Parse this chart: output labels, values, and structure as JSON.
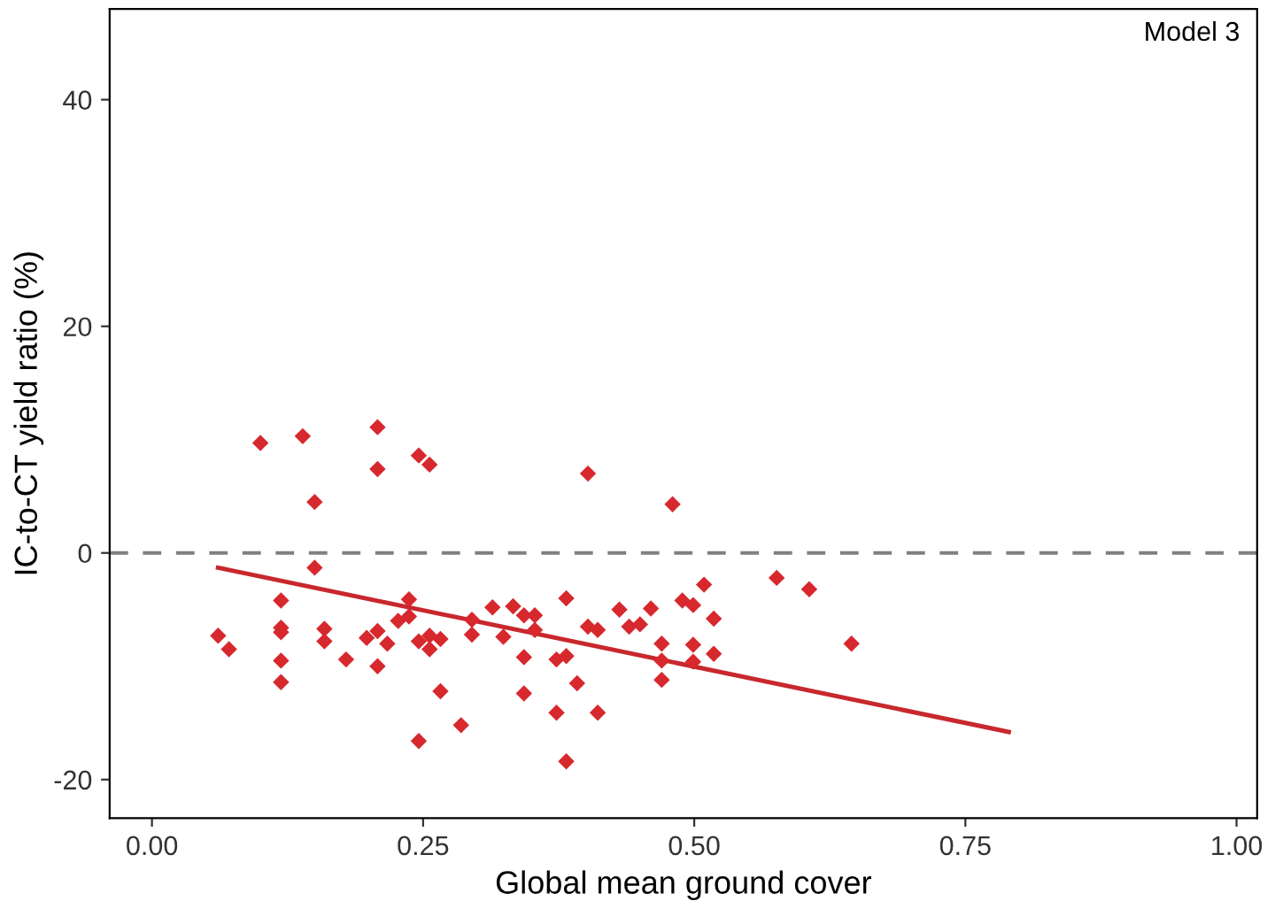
{
  "chart_data": {
    "type": "scatter",
    "xlabel": "Global mean ground cover",
    "ylabel": "IC-to-CT yield ratio (%)",
    "annotations": [
      "Model 3"
    ],
    "xlim": [
      -0.039,
      1.019
    ],
    "ylim": [
      -23.4,
      48
    ],
    "xticks": [
      {
        "value": 0,
        "label": "0.00"
      },
      {
        "value": 0.25,
        "label": "0.25"
      },
      {
        "value": 0.5,
        "label": "0.50"
      },
      {
        "value": 0.75,
        "label": "0.75"
      },
      {
        "value": 1,
        "label": "1.00"
      }
    ],
    "yticks": [
      -20,
      0,
      20,
      40
    ],
    "grid": false,
    "legend": false,
    "marker": "diamond",
    "ref_lines": [
      {
        "axis": "y",
        "value": 0,
        "color": "#808080",
        "line_style": "dashed"
      }
    ],
    "series": [
      {
        "color": "#d7282e",
        "x": [
          0.1,
          0.139,
          0.208,
          0.208,
          0.246,
          0.256,
          0.15,
          0.15,
          0.119,
          0.119,
          0.119,
          0.119,
          0.119,
          0.061,
          0.071,
          0.159,
          0.159,
          0.179,
          0.198,
          0.208,
          0.208,
          0.217,
          0.227,
          0.237,
          0.237,
          0.246,
          0.256,
          0.256,
          0.266,
          0.266,
          0.246,
          0.285,
          0.295,
          0.295,
          0.314,
          0.324,
          0.333,
          0.343,
          0.343,
          0.343,
          0.402,
          0.48,
          0.353,
          0.353,
          0.373,
          0.373,
          0.382,
          0.382,
          0.382,
          0.392,
          0.402,
          0.411,
          0.411,
          0.431,
          0.44,
          0.45,
          0.46,
          0.47,
          0.47,
          0.47,
          0.489,
          0.499,
          0.499,
          0.499,
          0.509,
          0.518,
          0.518,
          0.576,
          0.606,
          0.645
        ],
        "values": [
          9.7,
          10.3,
          11.1,
          7.4,
          8.6,
          7.8,
          4.5,
          -1.3,
          -4.2,
          -6.6,
          -7.0,
          -9.5,
          -11.4,
          -7.3,
          -8.5,
          -6.7,
          -7.8,
          -9.4,
          -7.5,
          -6.9,
          -10.0,
          -8.0,
          -6.0,
          -4.1,
          -5.6,
          -7.8,
          -7.3,
          -8.5,
          -7.6,
          -12.2,
          -16.6,
          -15.2,
          -5.9,
          -7.2,
          -4.8,
          -7.4,
          -4.7,
          -5.5,
          -9.2,
          -12.4,
          7.0,
          4.3,
          -5.5,
          -6.8,
          -9.4,
          -14.1,
          -4.0,
          -9.1,
          -18.4,
          -11.5,
          -6.5,
          -6.8,
          -14.1,
          -5.0,
          -6.5,
          -6.3,
          -4.9,
          -8.0,
          -9.5,
          -11.2,
          -4.2,
          -4.6,
          -8.1,
          -9.6,
          -2.8,
          -5.8,
          -8.9,
          -2.2,
          -3.2,
          -8.0
        ]
      },
      {
        "type": "line",
        "color": "#c8282d",
        "marker": "none",
        "line_style": "solid",
        "x": [
          0.061,
          0.79
        ],
        "values": [
          -1.3,
          -15.8
        ]
      }
    ]
  }
}
